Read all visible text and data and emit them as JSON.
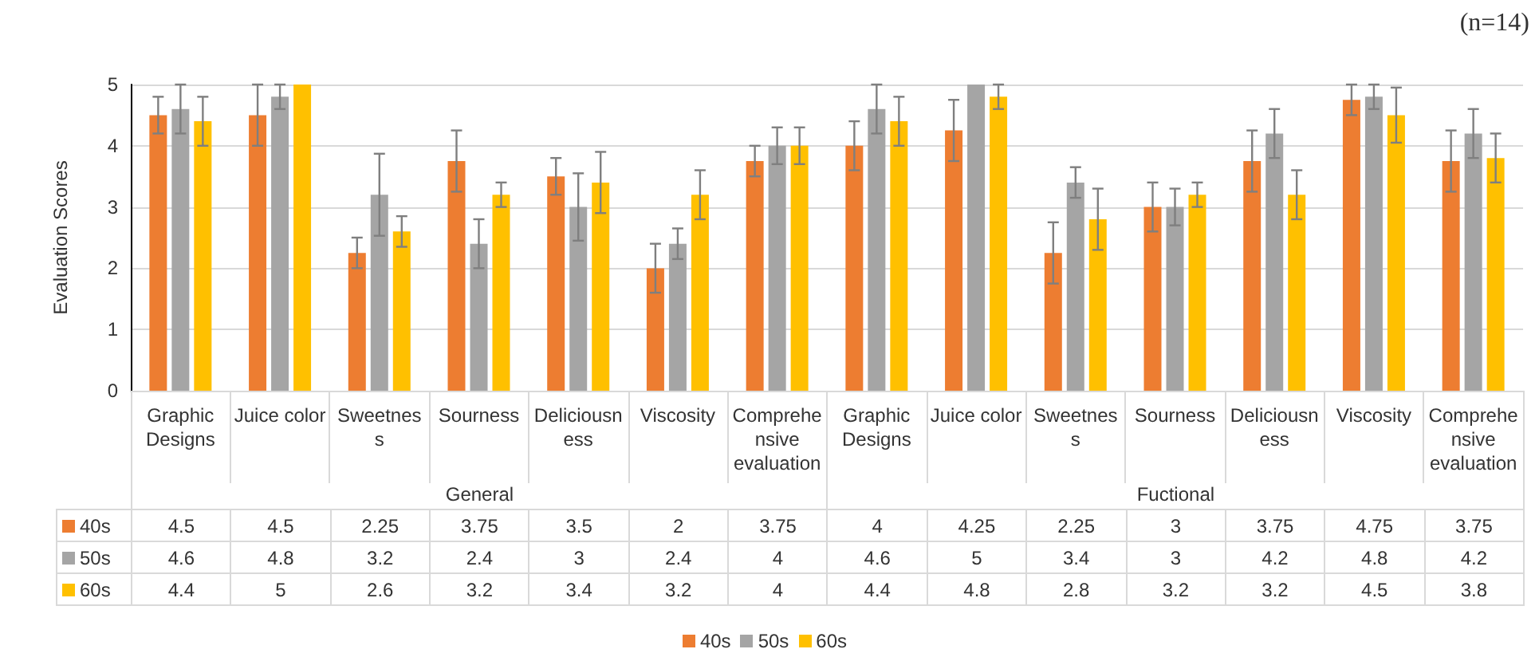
{
  "chart_data": {
    "type": "bar",
    "ylabel": "Evaluation Scores",
    "annotations": [
      "(n=14)",
      "General",
      "Fuctional"
    ],
    "categories": [
      "Graphic Designs",
      "Juice color",
      "Sweetness",
      "Sourness",
      "Deliciousness",
      "Viscosity",
      "Comprehensive evaluation",
      "Graphic Designs",
      "Juice color",
      "Sweetness",
      "Sourness",
      "Deliciousness",
      "Viscosity",
      "Comprehensive evaluation"
    ],
    "series": [
      {
        "name": "40s",
        "color": "#ed7d31",
        "values": [
          4.5,
          4.5,
          2.25,
          3.75,
          3.5,
          2,
          3.75,
          4,
          4.25,
          2.25,
          3,
          3.75,
          4.75,
          3.75
        ],
        "errors": [
          0.3,
          0.5,
          0.25,
          0.5,
          0.3,
          0.4,
          0.25,
          0.4,
          0.5,
          0.5,
          0.4,
          0.5,
          0.25,
          0.5
        ]
      },
      {
        "name": "50s",
        "color": "#a5a5a5",
        "values": [
          4.6,
          4.8,
          3.2,
          2.4,
          3,
          2.4,
          4,
          4.6,
          5,
          3.4,
          3,
          4.2,
          4.8,
          4.2
        ],
        "errors": [
          0.4,
          0.2,
          0.67,
          0.4,
          0.55,
          0.25,
          0.3,
          0.4,
          null,
          0.25,
          0.3,
          0.4,
          0.2,
          0.4
        ]
      },
      {
        "name": "60s",
        "color": "#ffc000",
        "values": [
          4.4,
          5,
          2.6,
          3.2,
          3.4,
          3.2,
          4,
          4.4,
          4.8,
          2.8,
          3.2,
          3.2,
          4.5,
          3.8
        ],
        "errors": [
          0.4,
          null,
          0.25,
          0.2,
          0.5,
          0.4,
          0.3,
          0.4,
          0.2,
          0.5,
          0.2,
          0.4,
          0.45,
          0.4
        ]
      }
    ],
    "ylim": [
      0,
      5
    ],
    "yticks": [
      0,
      1,
      2,
      3,
      4,
      5
    ],
    "grid": "y",
    "legend": "bottom",
    "data_labels": true
  }
}
